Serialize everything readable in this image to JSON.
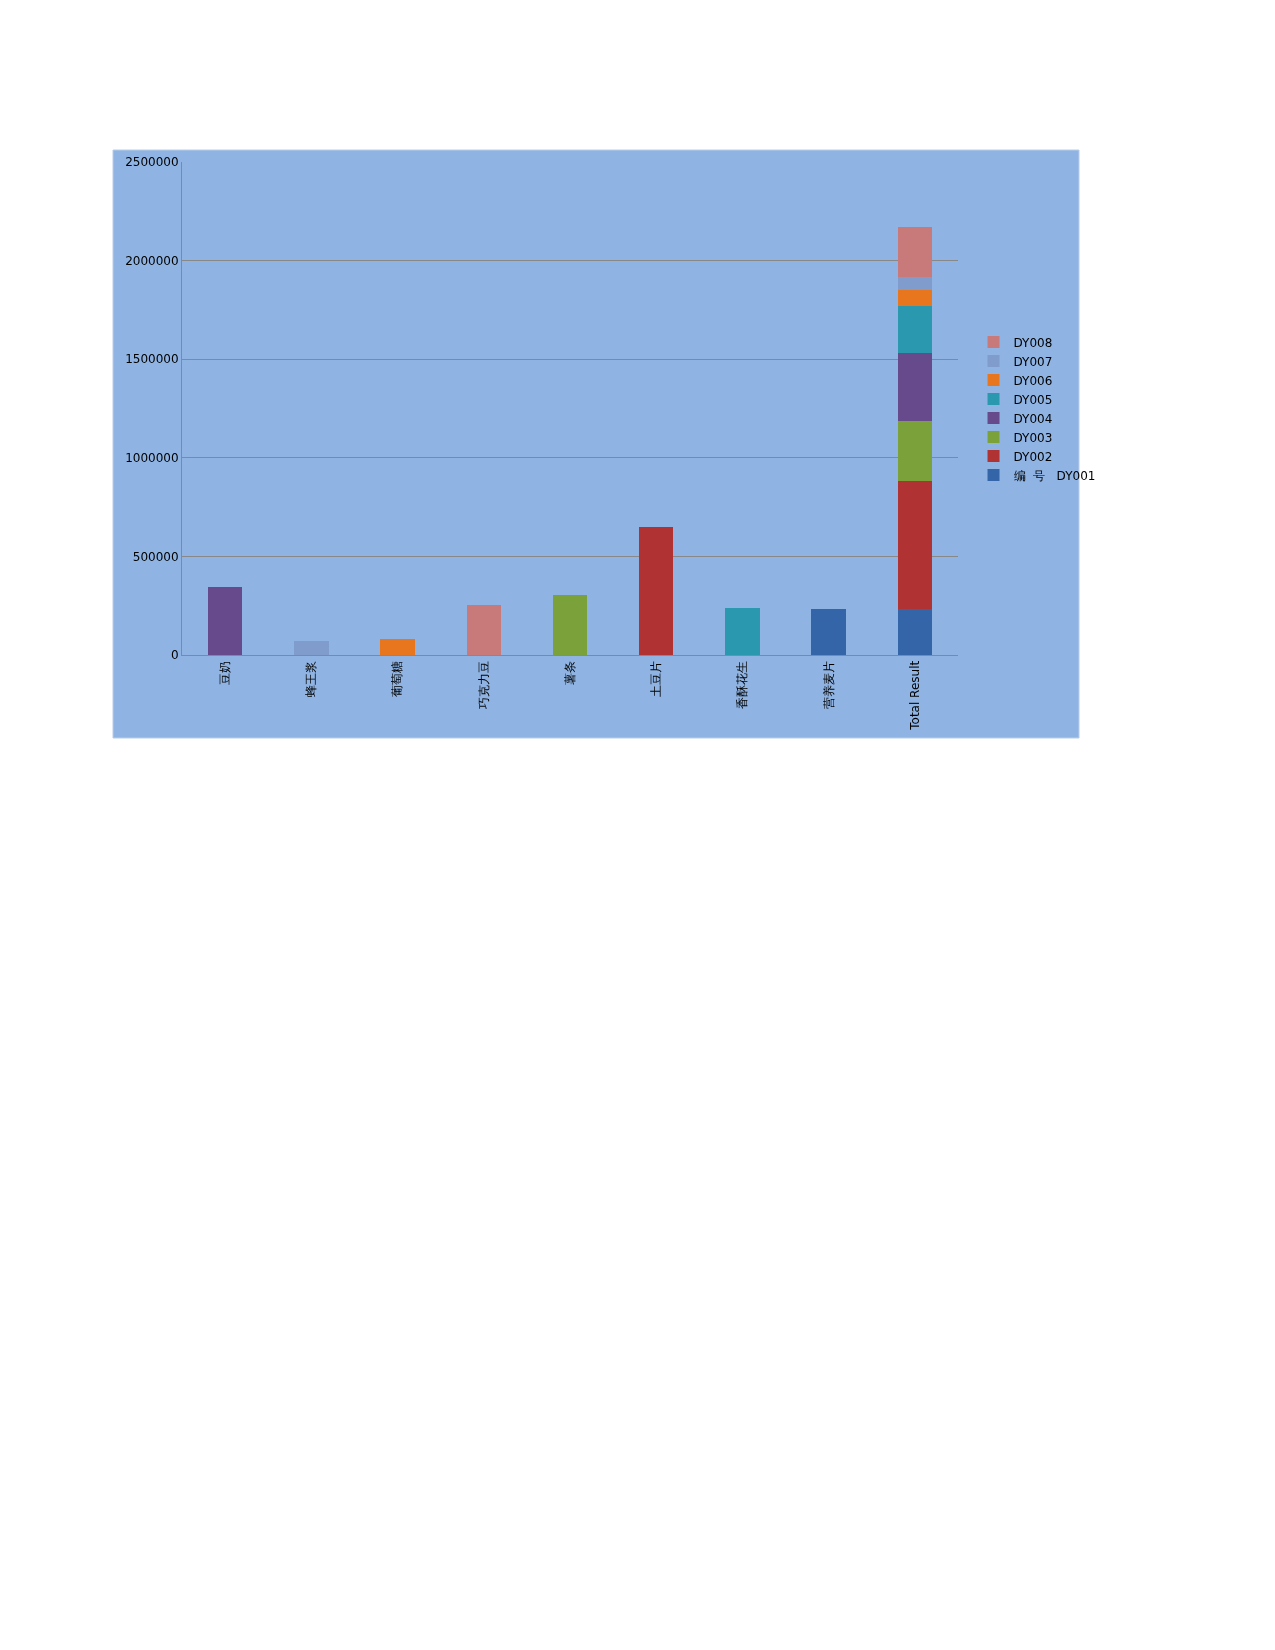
{
  "chart_data": {
    "type": "bar",
    "stacked": true,
    "categories": [
      "豆奶",
      "蜂王浆",
      "葡萄糖",
      "巧克力豆",
      "薯条",
      "土豆片",
      "香酥花生",
      "营养麦片",
      "Total Result"
    ],
    "series": [
      {
        "name": "编  号   DY001",
        "color": "#3465a8",
        "values": [
          null,
          null,
          null,
          null,
          null,
          null,
          null,
          233000,
          233000
        ]
      },
      {
        "name": "DY002",
        "color": "#b03232",
        "values": [
          null,
          null,
          null,
          null,
          null,
          649000,
          null,
          null,
          649000
        ]
      },
      {
        "name": "DY003",
        "color": "#7ba23a",
        "values": [
          null,
          null,
          null,
          null,
          304000,
          null,
          null,
          null,
          304000
        ]
      },
      {
        "name": "DY004",
        "color": "#664a8c",
        "values": [
          345000,
          null,
          null,
          null,
          null,
          null,
          null,
          null,
          345000
        ]
      },
      {
        "name": "DY005",
        "color": "#2a99b0",
        "values": [
          null,
          null,
          null,
          null,
          null,
          null,
          238000,
          null,
          238000
        ]
      },
      {
        "name": "DY006",
        "color": "#e8761e",
        "values": [
          null,
          null,
          81000,
          null,
          null,
          null,
          null,
          null,
          81000
        ]
      },
      {
        "name": "DY007",
        "color": "#7f9ccc",
        "values": [
          null,
          69000,
          null,
          null,
          null,
          null,
          null,
          null,
          69000
        ]
      },
      {
        "name": "DY008",
        "color": "#c87a7a",
        "values": [
          null,
          null,
          null,
          253000,
          null,
          null,
          null,
          null,
          253000
        ]
      }
    ],
    "ylim": [
      0,
      2500000
    ],
    "yticks": [
      0,
      500000,
      1000000,
      1500000,
      2000000,
      2500000
    ],
    "grid": "y",
    "legend": "right"
  }
}
